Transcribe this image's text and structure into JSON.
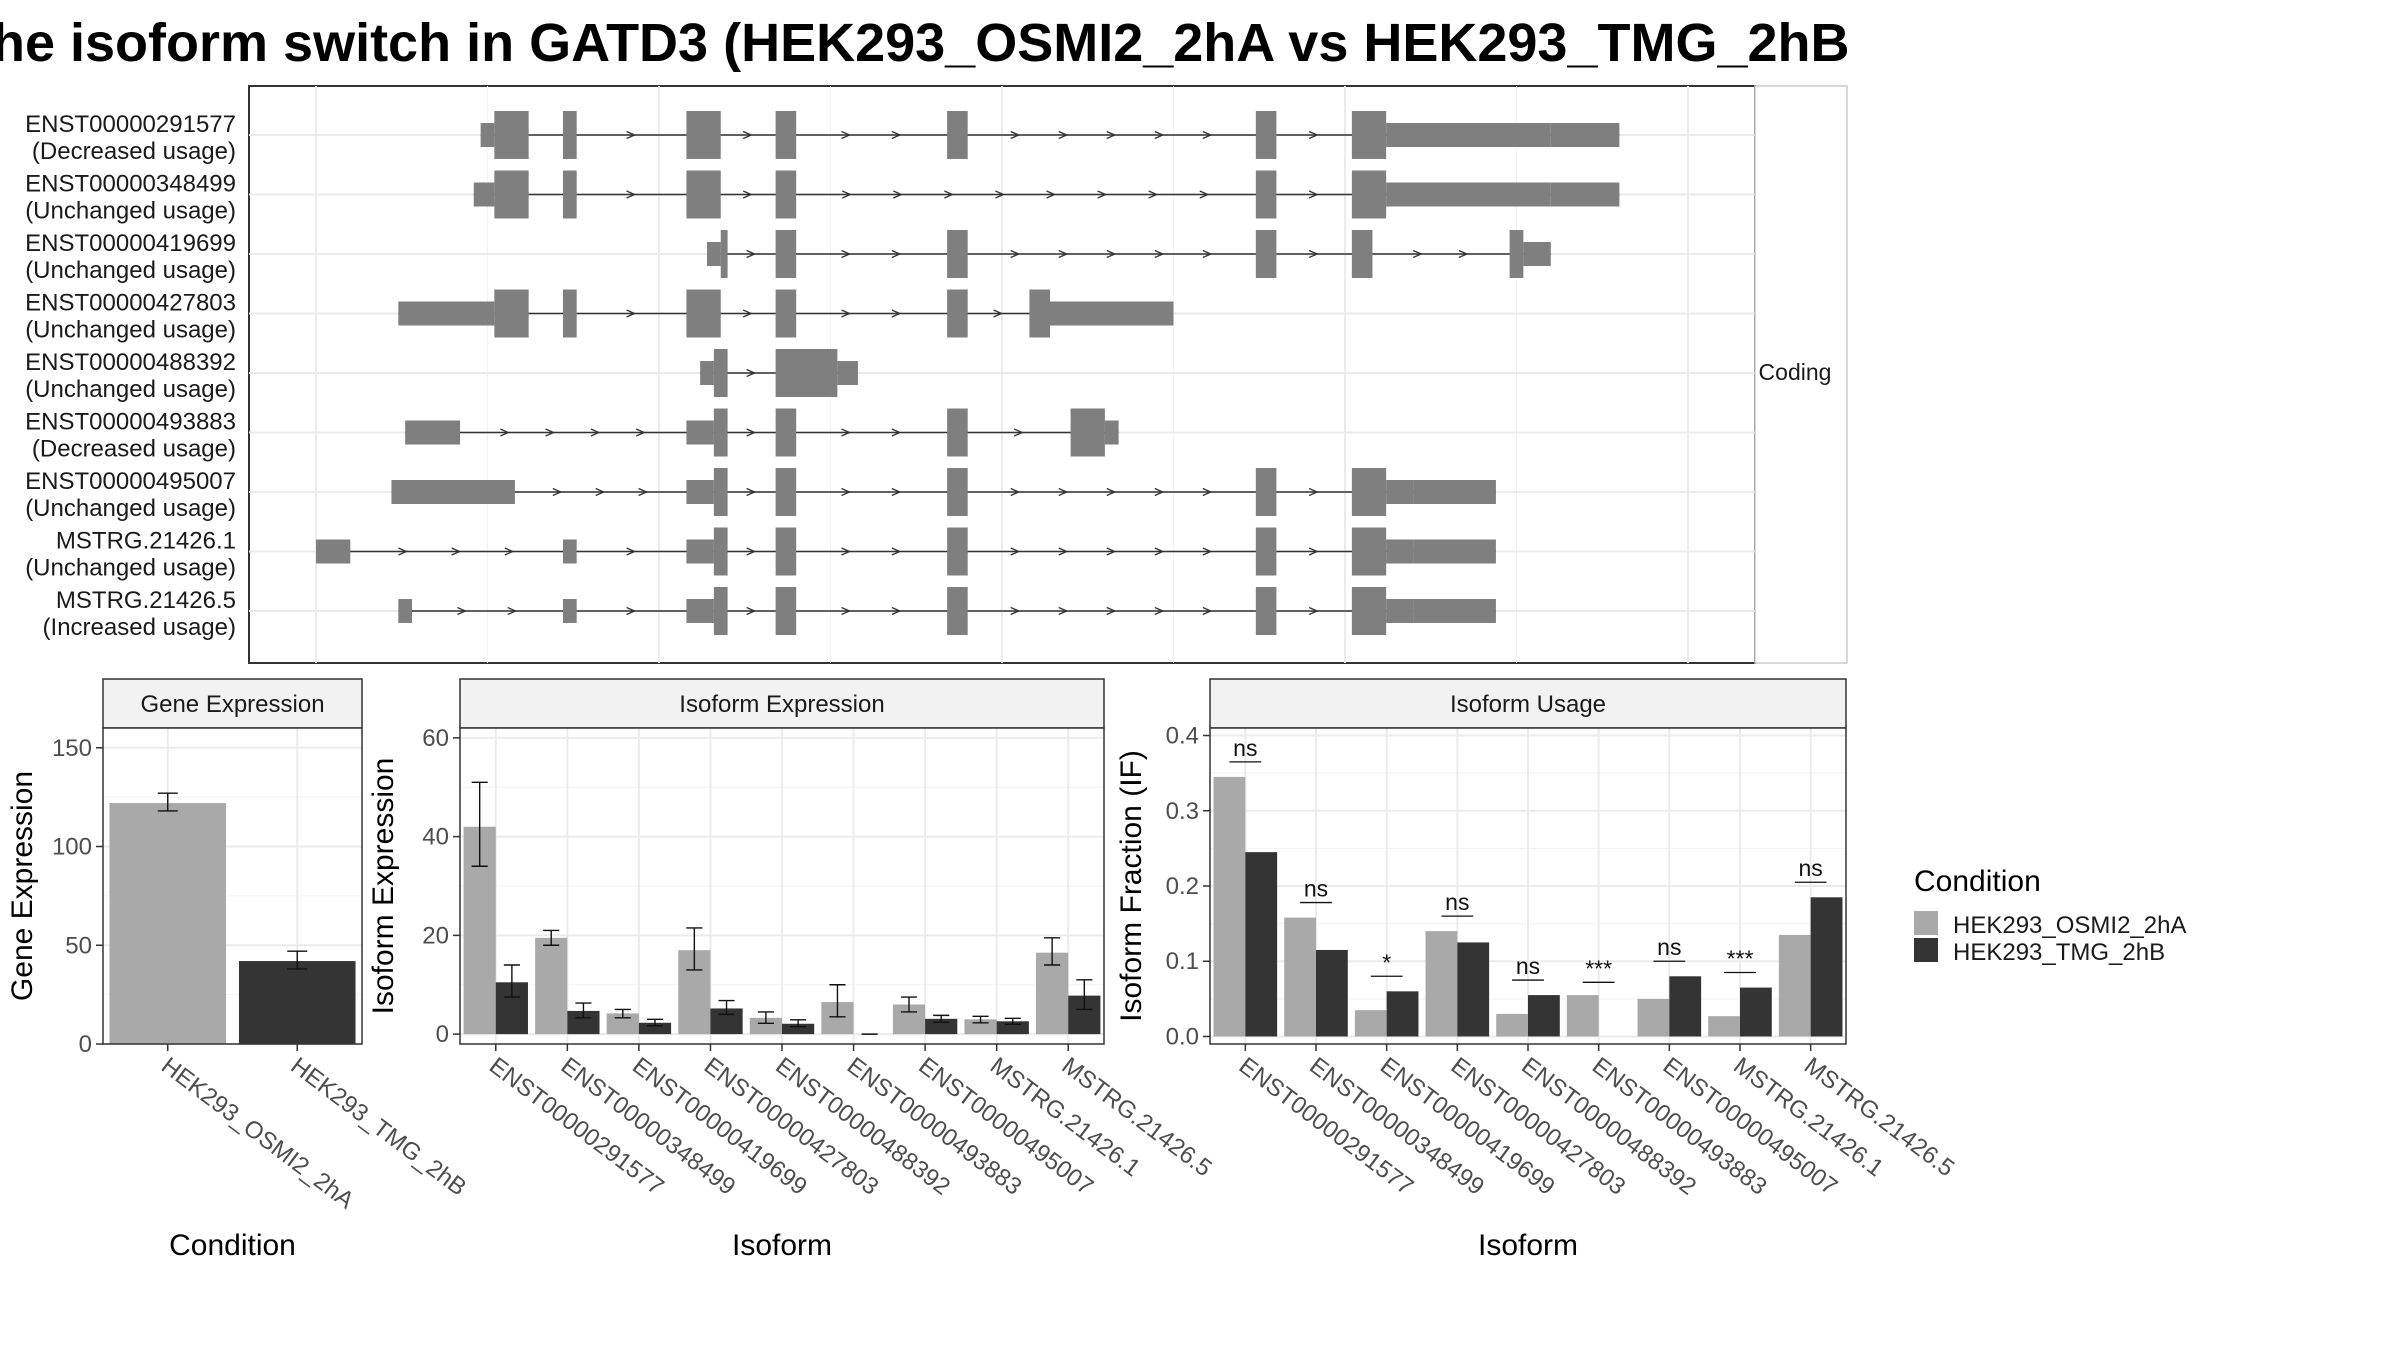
{
  "title": "he isoform switch in GATD3 (HEK293_OSMI2_2hA vs HEK293_TMG_2hB",
  "colors": {
    "condition_a": "#a9a9a9",
    "condition_b": "#343434",
    "exon": "#7f7f7f",
    "strip": "#f2f2f2",
    "grid": "#ebebeb"
  },
  "chart_data": [
    {
      "type": "gene-structure",
      "panel_label": "Coding",
      "x_range": [
        0,
        2
      ],
      "transcripts": [
        {
          "id": "ENST00000291577",
          "usage": "(Decreased usage)",
          "thin": [
            [
              0.24,
              0.26
            ],
            [
              1.8,
              1.9
            ]
          ],
          "thick": [
            [
              0.26,
              0.31
            ],
            [
              0.36,
              0.38
            ],
            [
              0.54,
              0.59
            ],
            [
              0.67,
              0.7
            ],
            [
              0.92,
              0.95
            ],
            [
              1.37,
              1.4
            ],
            [
              1.51,
              1.56
            ]
          ],
          "wide": [
            [
              1.56,
              1.8
            ]
          ]
        },
        {
          "id": "ENST00000348499",
          "usage": "(Unchanged usage)",
          "thin": [
            [
              0.23,
              0.26
            ],
            [
              1.8,
              1.9
            ]
          ],
          "thick": [
            [
              0.26,
              0.31
            ],
            [
              0.36,
              0.38
            ],
            [
              0.54,
              0.59
            ],
            [
              0.67,
              0.7
            ],
            [
              1.37,
              1.4
            ],
            [
              1.51,
              1.56
            ]
          ],
          "wide": [
            [
              1.56,
              1.8
            ]
          ]
        },
        {
          "id": "ENST00000419699",
          "usage": "(Unchanged usage)",
          "thin": [
            [
              0.57,
              0.59
            ],
            [
              1.76,
              1.8
            ]
          ],
          "thick": [
            [
              0.59,
              0.6
            ],
            [
              0.67,
              0.7
            ],
            [
              0.92,
              0.95
            ],
            [
              1.37,
              1.4
            ],
            [
              1.51,
              1.54
            ],
            [
              1.74,
              1.76
            ]
          ],
          "wide": []
        },
        {
          "id": "ENST00000427803",
          "usage": "(Unchanged usage)",
          "thin": [
            [
              0.12,
              0.26
            ],
            [
              1.07,
              1.25
            ]
          ],
          "thick": [
            [
              0.26,
              0.31
            ],
            [
              0.36,
              0.38
            ],
            [
              0.54,
              0.59
            ],
            [
              0.67,
              0.7
            ],
            [
              0.92,
              0.95
            ],
            [
              1.04,
              1.07
            ]
          ],
          "wide": []
        },
        {
          "id": "ENST00000488392",
          "usage": "(Unchanged usage)",
          "thin": [
            [
              0.56,
              0.58
            ],
            [
              0.76,
              0.79
            ]
          ],
          "thick": [
            [
              0.58,
              0.6
            ],
            [
              0.67,
              0.76
            ]
          ],
          "wide": []
        },
        {
          "id": "ENST00000493883",
          "usage": "(Decreased usage)",
          "thin": [
            [
              0.13,
              0.21
            ],
            [
              0.54,
              0.58
            ],
            [
              1.15,
              1.17
            ]
          ],
          "thick": [
            [
              0.58,
              0.6
            ],
            [
              0.67,
              0.7
            ],
            [
              0.92,
              0.95
            ],
            [
              1.1,
              1.15
            ]
          ],
          "wide": []
        },
        {
          "id": "ENST00000495007",
          "usage": "(Unchanged usage)",
          "thin": [
            [
              0.11,
              0.29
            ],
            [
              0.54,
              0.58
            ],
            [
              1.6,
              1.72
            ]
          ],
          "thick": [
            [
              0.58,
              0.6
            ],
            [
              0.67,
              0.7
            ],
            [
              0.92,
              0.95
            ],
            [
              1.37,
              1.4
            ],
            [
              1.51,
              1.56
            ]
          ],
          "wide": [
            [
              1.56,
              1.6
            ]
          ]
        },
        {
          "id": "MSTRG.21426.1",
          "usage": "(Unchanged usage)",
          "thin": [
            [
              0.0,
              0.05
            ],
            [
              0.36,
              0.38
            ],
            [
              0.54,
              0.58
            ],
            [
              1.6,
              1.72
            ]
          ],
          "thick": [
            [
              0.58,
              0.6
            ],
            [
              0.67,
              0.7
            ],
            [
              0.92,
              0.95
            ],
            [
              1.37,
              1.4
            ],
            [
              1.51,
              1.56
            ]
          ],
          "wide": [
            [
              1.56,
              1.6
            ]
          ]
        },
        {
          "id": "MSTRG.21426.5",
          "usage": "(Increased usage)",
          "thin": [
            [
              0.12,
              0.14
            ],
            [
              0.36,
              0.38
            ],
            [
              0.54,
              0.58
            ],
            [
              1.6,
              1.72
            ]
          ],
          "thick": [
            [
              0.58,
              0.6
            ],
            [
              0.67,
              0.7
            ],
            [
              0.92,
              0.95
            ],
            [
              1.37,
              1.4
            ],
            [
              1.51,
              1.56
            ]
          ],
          "wide": [
            [
              1.56,
              1.6
            ]
          ]
        }
      ]
    },
    {
      "type": "bar",
      "title": "Gene Expression",
      "xlabel": "Condition",
      "ylabel": "Gene Expression",
      "ylim": [
        0,
        160
      ],
      "yticks": [
        "0",
        "50",
        "100",
        "150"
      ],
      "categories": [
        "HEK293_OSMI2_2hA",
        "HEK293_TMG_2hB"
      ],
      "values": [
        122,
        42
      ],
      "errors": [
        [
          118,
          127
        ],
        [
          38,
          47
        ]
      ]
    },
    {
      "type": "bar",
      "title": "Isoform Expression",
      "xlabel": "Isoform",
      "ylabel": "Isoform Expression",
      "ylim": [
        -2,
        62
      ],
      "yticks": [
        "0",
        "20",
        "40",
        "60"
      ],
      "categories": [
        "ENST00000291577",
        "ENST00000348499",
        "ENST00000419699",
        "ENST00000427803",
        "ENST00000488392",
        "ENST00000493883",
        "ENST00000495007",
        "MSTRG.21426.1",
        "MSTRG.21426.5"
      ],
      "series": [
        {
          "name": "HEK293_OSMI2_2hA",
          "values": [
            42,
            19.5,
            4.2,
            17,
            3.3,
            6.5,
            6,
            3,
            16.5
          ],
          "errors": [
            [
              34,
              51
            ],
            [
              18,
              21
            ],
            [
              3.3,
              5
            ],
            [
              13,
              21.5
            ],
            [
              2.2,
              4.5
            ],
            [
              3.5,
              10
            ],
            [
              4.5,
              7.5
            ],
            [
              2.3,
              3.6
            ],
            [
              14,
              19.5
            ]
          ]
        },
        {
          "name": "HEK293_TMG_2hB",
          "values": [
            10.5,
            4.7,
            2.3,
            5.2,
            2.1,
            0,
            3.1,
            2.6,
            7.8
          ],
          "errors": [
            [
              7.5,
              14
            ],
            [
              3.3,
              6.3
            ],
            [
              1.7,
              3
            ],
            [
              4,
              6.8
            ],
            [
              1.5,
              2.9
            ],
            [
              0,
              0
            ],
            [
              2.4,
              3.8
            ],
            [
              2,
              3.2
            ],
            [
              5,
              11
            ]
          ]
        }
      ]
    },
    {
      "type": "bar",
      "title": "Isoform Usage",
      "xlabel": "Isoform",
      "ylabel": "Isoform Fraction (IF)",
      "ylim": [
        -0.01,
        0.41
      ],
      "yticks": [
        "0.0",
        "0.1",
        "0.2",
        "0.3",
        "0.4"
      ],
      "categories": [
        "ENST00000291577",
        "ENST00000348499",
        "ENST00000419699",
        "ENST00000427803",
        "ENST00000488392",
        "ENST00000493883",
        "ENST00000495007",
        "MSTRG.21426.1",
        "MSTRG.21426.5"
      ],
      "series": [
        {
          "name": "HEK293_OSMI2_2hA",
          "values": [
            0.345,
            0.158,
            0.035,
            0.14,
            0.03,
            0.055,
            0.05,
            0.027,
            0.135
          ]
        },
        {
          "name": "HEK293_TMG_2hB",
          "values": [
            0.245,
            0.115,
            0.06,
            0.125,
            0.055,
            0,
            0.08,
            0.065,
            0.185
          ]
        }
      ],
      "significance": [
        {
          "label": "ns",
          "y": 0.365
        },
        {
          "label": "ns",
          "y": 0.178
        },
        {
          "label": "*",
          "y": 0.08
        },
        {
          "label": "ns",
          "y": 0.16
        },
        {
          "label": "ns",
          "y": 0.075
        },
        {
          "label": "***",
          "y": 0.072
        },
        {
          "label": "ns",
          "y": 0.1
        },
        {
          "label": "***",
          "y": 0.085
        },
        {
          "label": "ns",
          "y": 0.205
        }
      ]
    }
  ],
  "legend": {
    "title": "Condition",
    "items": [
      {
        "label": "HEK293_OSMI2_2hA"
      },
      {
        "label": "HEK293_TMG_2hB"
      }
    ]
  }
}
